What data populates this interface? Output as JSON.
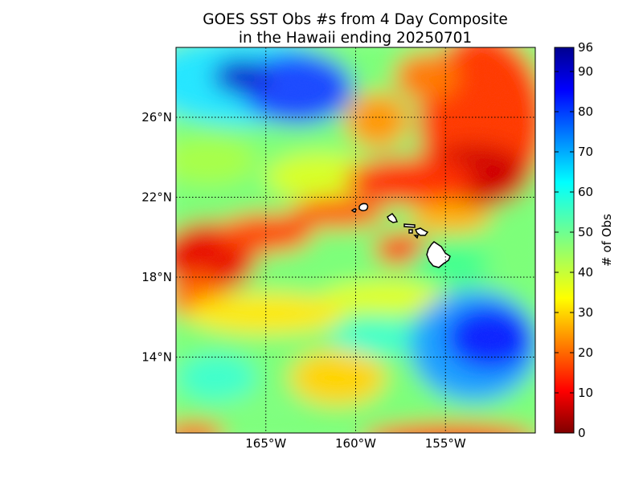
{
  "title": {
    "line1": "GOES SST Obs #s from 4 Day Composite",
    "line2": "in the Hawaii ending 20250701"
  },
  "map": {
    "lon_ticks": [
      {
        "value": -165,
        "label": "165°W"
      },
      {
        "value": -160,
        "label": "160°W"
      },
      {
        "value": -155,
        "label": "155°W"
      }
    ],
    "lat_ticks": [
      {
        "value": 26,
        "label": "26°N"
      },
      {
        "value": 22,
        "label": "22°N"
      },
      {
        "value": 18,
        "label": "18°N"
      },
      {
        "value": 14,
        "label": "14°N"
      }
    ],
    "lon_range": [
      -170,
      -150
    ],
    "lat_range": [
      10.2,
      29.5
    ],
    "grid": "dotted",
    "islands": [
      "Niihau",
      "Kauai",
      "Oahu",
      "Molokai",
      "Lanai",
      "Maui",
      "Kahoolawe",
      "Hawaii"
    ]
  },
  "colorbar": {
    "label": "# of Obs",
    "range": [
      0,
      96
    ],
    "ticks": [
      {
        "value": 0,
        "label": "0"
      },
      {
        "value": 10,
        "label": "10"
      },
      {
        "value": 20,
        "label": "20"
      },
      {
        "value": 30,
        "label": "30"
      },
      {
        "value": 40,
        "label": "40"
      },
      {
        "value": 50,
        "label": "50"
      },
      {
        "value": 60,
        "label": "60"
      },
      {
        "value": 70,
        "label": "70"
      },
      {
        "value": 80,
        "label": "80"
      },
      {
        "value": 90,
        "label": "90"
      },
      {
        "value": 96,
        "label": "96"
      }
    ],
    "colormap": "jet"
  }
}
